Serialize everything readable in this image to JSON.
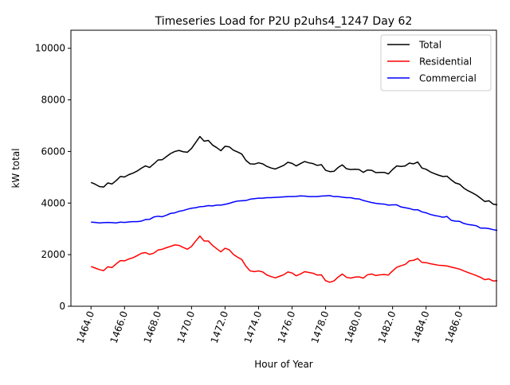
{
  "chart_data": {
    "type": "line",
    "title": "Timeseries Load for P2U p2uhs4_1247  Day 62",
    "xlabel": "Hour of Year",
    "ylabel": "kW total",
    "xlim": [
      1462.8,
      1488.2
    ],
    "ylim": [
      0,
      10700
    ],
    "xticks": [
      1464,
      1466,
      1468,
      1470,
      1472,
      1474,
      1476,
      1478,
      1480,
      1482,
      1484,
      1486
    ],
    "xtick_labels": [
      "1464.0",
      "1466.0",
      "1468.0",
      "1470.0",
      "1472.0",
      "1474.0",
      "1476.0",
      "1478.0",
      "1480.0",
      "1482.0",
      "1484.0",
      "1486.0"
    ],
    "yticks": [
      0,
      2000,
      4000,
      6000,
      8000,
      10000
    ],
    "ytick_labels": [
      "0",
      "2000",
      "4000",
      "6000",
      "8000",
      "10000"
    ],
    "grid": false,
    "legend_position": "top-right",
    "x_start": 1464.0,
    "x_step": 0.25,
    "series": [
      {
        "name": "Total",
        "color": "#000000",
        "values": [
          4800,
          4730,
          4640,
          4620,
          4780,
          4740,
          4870,
          5030,
          5010,
          5100,
          5160,
          5240,
          5350,
          5440,
          5380,
          5520,
          5670,
          5680,
          5800,
          5920,
          6000,
          6040,
          5990,
          5970,
          6120,
          6350,
          6580,
          6400,
          6430,
          6250,
          6150,
          6030,
          6200,
          6180,
          6050,
          5980,
          5900,
          5650,
          5520,
          5510,
          5560,
          5520,
          5420,
          5360,
          5320,
          5390,
          5460,
          5580,
          5540,
          5440,
          5530,
          5610,
          5560,
          5530,
          5460,
          5490,
          5270,
          5220,
          5230,
          5380,
          5480,
          5330,
          5300,
          5310,
          5300,
          5190,
          5280,
          5270,
          5180,
          5190,
          5190,
          5130,
          5300,
          5440,
          5420,
          5440,
          5550,
          5520,
          5590,
          5360,
          5310,
          5210,
          5140,
          5080,
          5030,
          5040,
          4900,
          4780,
          4730,
          4580,
          4480,
          4400,
          4310,
          4190,
          4060,
          4090,
          3960,
          3930
        ]
      },
      {
        "name": "Residential",
        "color": "#ff0000",
        "values": [
          1540,
          1480,
          1420,
          1380,
          1530,
          1500,
          1640,
          1770,
          1760,
          1830,
          1880,
          1960,
          2050,
          2080,
          2010,
          2060,
          2180,
          2210,
          2270,
          2320,
          2380,
          2360,
          2280,
          2210,
          2320,
          2530,
          2720,
          2530,
          2530,
          2360,
          2230,
          2110,
          2250,
          2190,
          2010,
          1900,
          1810,
          1550,
          1370,
          1340,
          1370,
          1330,
          1210,
          1150,
          1100,
          1160,
          1220,
          1330,
          1290,
          1180,
          1250,
          1340,
          1310,
          1280,
          1210,
          1220,
          990,
          930,
          980,
          1130,
          1250,
          1120,
          1090,
          1130,
          1140,
          1090,
          1220,
          1250,
          1190,
          1220,
          1230,
          1210,
          1370,
          1510,
          1570,
          1620,
          1760,
          1780,
          1850,
          1700,
          1690,
          1650,
          1620,
          1590,
          1580,
          1560,
          1520,
          1480,
          1440,
          1370,
          1310,
          1250,
          1190,
          1120,
          1030,
          1060,
          980,
          990
        ]
      },
      {
        "name": "Commercial",
        "color": "#0000ff",
        "values": [
          3260,
          3250,
          3230,
          3240,
          3250,
          3240,
          3230,
          3260,
          3250,
          3270,
          3280,
          3280,
          3300,
          3360,
          3370,
          3460,
          3490,
          3470,
          3530,
          3600,
          3620,
          3680,
          3710,
          3760,
          3800,
          3820,
          3860,
          3870,
          3900,
          3890,
          3920,
          3920,
          3950,
          3990,
          4040,
          4080,
          4090,
          4100,
          4150,
          4170,
          4190,
          4190,
          4210,
          4210,
          4220,
          4230,
          4240,
          4250,
          4250,
          4260,
          4280,
          4270,
          4250,
          4250,
          4250,
          4270,
          4280,
          4290,
          4250,
          4250,
          4230,
          4210,
          4210,
          4170,
          4160,
          4100,
          4060,
          4020,
          3990,
          3970,
          3960,
          3920,
          3930,
          3930,
          3850,
          3820,
          3790,
          3740,
          3740,
          3660,
          3620,
          3560,
          3520,
          3490,
          3450,
          3480,
          3330,
          3300,
          3290,
          3210,
          3170,
          3150,
          3120,
          3030,
          3030,
          3010,
          2970,
          2940
        ]
      }
    ]
  }
}
